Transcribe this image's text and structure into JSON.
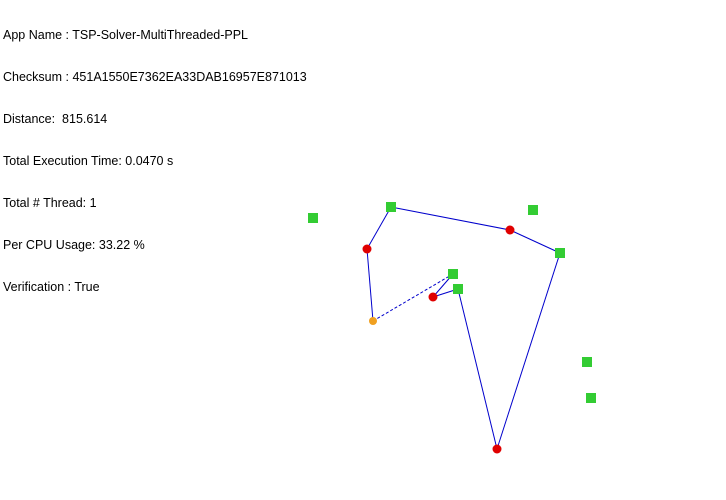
{
  "info": {
    "app_name": "App Name : TSP-Solver-MultiThreaded-PPL",
    "checksum": "Checksum : 451A1550E7362EA33DAB16957E871013",
    "distance": "Distance:  815.614",
    "execution_time": "Total Execution Time: 0.0470 s",
    "thread_count": "Total # Thread: 1",
    "cpu_usage": "Per CPU Usage: 33.22 %",
    "verification": "Verification : True"
  },
  "colors": {
    "text": "#000000",
    "route_line": "#0000cc",
    "city_node": "#33cc33",
    "red_node": "#e00000",
    "start_node": "#f0a020",
    "background": "#ffffff"
  },
  "icons": {
    "city_node": "green-square",
    "tour_node": "red-circle",
    "start_node": "orange-circle"
  }
}
